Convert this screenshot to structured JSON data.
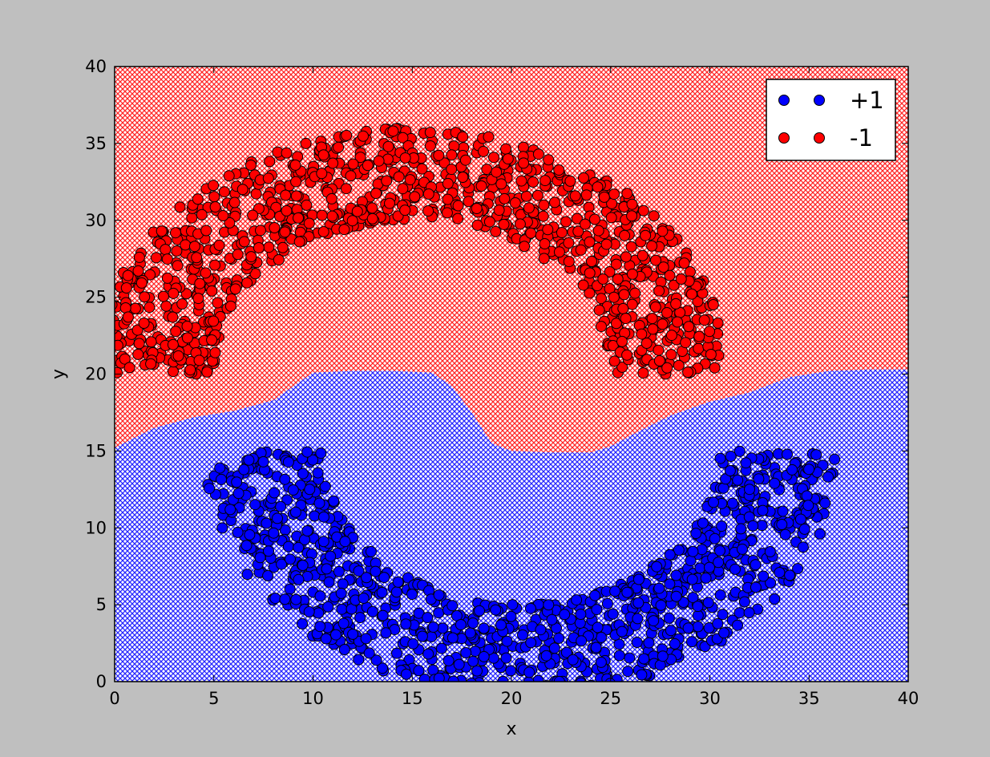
{
  "chart_data": {
    "type": "scatter",
    "title": "",
    "xlabel": "x",
    "ylabel": "y",
    "xlim": [
      0,
      40
    ],
    "ylim": [
      0,
      40
    ],
    "xticks": [
      "0",
      "5",
      "10",
      "15",
      "20",
      "25",
      "30",
      "35",
      "40"
    ],
    "yticks": [
      "0",
      "5",
      "10",
      "15",
      "20",
      "25",
      "30",
      "35",
      "40"
    ],
    "grid": false,
    "legend_position": "top-right",
    "background": {
      "description_free": true,
      "regions": [
        {
          "label": "+1",
          "color": "#0000ff"
        },
        {
          "label": "-1",
          "color": "#ff0000"
        }
      ],
      "boundary": [
        [
          0,
          15.2
        ],
        [
          2,
          16.5
        ],
        [
          4,
          17.2
        ],
        [
          6,
          17.6
        ],
        [
          8,
          18.3
        ],
        [
          9,
          19.2
        ],
        [
          10,
          20.1
        ],
        [
          12,
          20.2
        ],
        [
          14,
          20.2
        ],
        [
          16,
          20.1
        ],
        [
          17,
          19.2
        ],
        [
          18,
          17.5
        ],
        [
          19,
          15.5
        ],
        [
          20,
          15.0
        ],
        [
          22,
          14.9
        ],
        [
          24,
          14.9
        ],
        [
          25,
          15.3
        ],
        [
          26,
          16.0
        ],
        [
          28,
          17.3
        ],
        [
          30,
          18.2
        ],
        [
          32,
          18.8
        ],
        [
          34,
          19.8
        ],
        [
          36,
          20.2
        ],
        [
          38,
          20.3
        ],
        [
          40,
          20.3
        ]
      ]
    },
    "series": [
      {
        "name": "+1",
        "color": "#0000ff",
        "shape": "half-moon-lower",
        "center": [
          20.5,
          15
        ],
        "radius_range": [
          10,
          16
        ],
        "angle_range": [
          180,
          360
        ],
        "count": 1000
      },
      {
        "name": "-1",
        "color": "#ff0000",
        "shape": "half-moon-upper",
        "center": [
          15,
          20
        ],
        "radius_range": [
          10,
          16
        ],
        "angle_range": [
          0,
          180
        ],
        "count": 1000
      }
    ],
    "legend": [
      {
        "label": "+1",
        "color": "#0000ff"
      },
      {
        "label": "-1",
        "color": "#ff0000"
      }
    ]
  }
}
